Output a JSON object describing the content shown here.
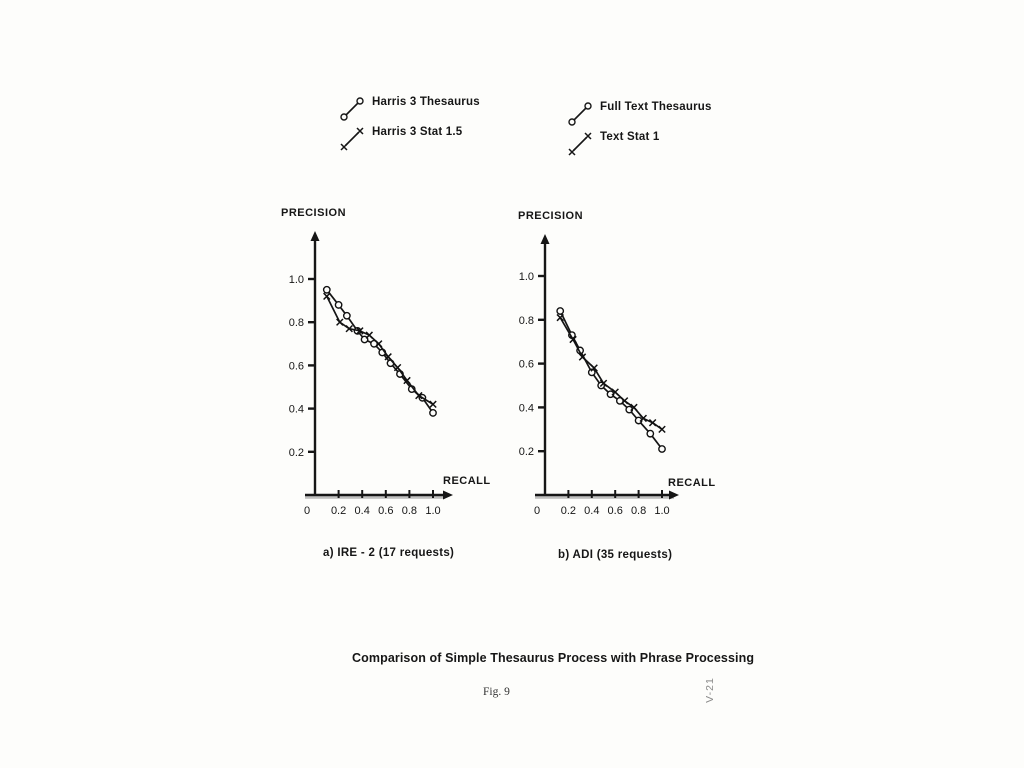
{
  "figure": {
    "title": "Comparison of Simple Thesaurus Process with Phrase Processing",
    "fig_label": "Fig. 9",
    "side_label": "V-21"
  },
  "legends": [
    {
      "name": "ire2-legend",
      "items": [
        {
          "marker": "circle",
          "label": "Harris 3 Thesaurus"
        },
        {
          "marker": "cross",
          "label": "Harris 3 Stat 1.5"
        }
      ]
    },
    {
      "name": "adi-legend",
      "items": [
        {
          "marker": "circle",
          "label": "Full Text Thesaurus"
        },
        {
          "marker": "cross",
          "label": "Text Stat 1"
        }
      ]
    }
  ],
  "chart_data": [
    {
      "type": "line",
      "title": "a)  IRE - 2 (17 requests)",
      "xlabel": "RECALL",
      "ylabel": "PRECISION",
      "xlim": [
        0,
        1.1
      ],
      "ylim": [
        0,
        1.15
      ],
      "x_ticks": [
        "0",
        "0.2",
        "0.4",
        "0.6",
        "0.8",
        "1.0"
      ],
      "x_tick_values": [
        0,
        0.2,
        0.4,
        0.6,
        0.8,
        1.0
      ],
      "y_ticks": [
        "1.0",
        "0.8",
        "0.6",
        "0.4",
        "0.2"
      ],
      "y_tick_values": [
        1.0,
        0.8,
        0.6,
        0.4,
        0.2
      ],
      "grid": false,
      "legend_position": "top-outside",
      "series": [
        {
          "name": "Harris 3 Thesaurus",
          "marker": "circle",
          "points": [
            [
              0.1,
              0.95
            ],
            [
              0.2,
              0.88
            ],
            [
              0.27,
              0.83
            ],
            [
              0.36,
              0.76
            ],
            [
              0.42,
              0.72
            ],
            [
              0.5,
              0.7
            ],
            [
              0.57,
              0.66
            ],
            [
              0.64,
              0.61
            ],
            [
              0.72,
              0.56
            ],
            [
              0.82,
              0.49
            ],
            [
              0.91,
              0.45
            ],
            [
              1.0,
              0.38
            ]
          ]
        },
        {
          "name": "Harris 3 Stat 1.5",
          "marker": "cross",
          "points": [
            [
              0.1,
              0.92
            ],
            [
              0.21,
              0.8
            ],
            [
              0.29,
              0.77
            ],
            [
              0.38,
              0.76
            ],
            [
              0.46,
              0.74
            ],
            [
              0.54,
              0.7
            ],
            [
              0.62,
              0.64
            ],
            [
              0.7,
              0.59
            ],
            [
              0.78,
              0.53
            ],
            [
              0.88,
              0.46
            ],
            [
              1.0,
              0.42
            ]
          ]
        }
      ]
    },
    {
      "type": "line",
      "title": "b)  ADI (35 requests)",
      "xlabel": "RECALL",
      "ylabel": "PRECISION",
      "xlim": [
        0,
        1.1
      ],
      "ylim": [
        0,
        1.15
      ],
      "x_ticks": [
        "0",
        "0.2",
        "0.4",
        "0.6",
        "0.8",
        "1.0"
      ],
      "x_tick_values": [
        0,
        0.2,
        0.4,
        0.6,
        0.8,
        1.0
      ],
      "y_ticks": [
        "1.0",
        "0.8",
        "0.6",
        "0.4",
        "0.2"
      ],
      "y_tick_values": [
        1.0,
        0.8,
        0.6,
        0.4,
        0.2
      ],
      "grid": false,
      "legend_position": "top-outside",
      "series": [
        {
          "name": "Full Text Thesaurus",
          "marker": "circle",
          "points": [
            [
              0.13,
              0.84
            ],
            [
              0.23,
              0.73
            ],
            [
              0.3,
              0.66
            ],
            [
              0.4,
              0.56
            ],
            [
              0.48,
              0.5
            ],
            [
              0.56,
              0.46
            ],
            [
              0.64,
              0.43
            ],
            [
              0.72,
              0.39
            ],
            [
              0.8,
              0.34
            ],
            [
              0.9,
              0.28
            ],
            [
              1.0,
              0.21
            ]
          ]
        },
        {
          "name": "Text Stat 1",
          "marker": "cross",
          "points": [
            [
              0.13,
              0.81
            ],
            [
              0.24,
              0.71
            ],
            [
              0.32,
              0.63
            ],
            [
              0.42,
              0.58
            ],
            [
              0.5,
              0.51
            ],
            [
              0.6,
              0.47
            ],
            [
              0.68,
              0.43
            ],
            [
              0.76,
              0.4
            ],
            [
              0.84,
              0.35
            ],
            [
              0.92,
              0.33
            ],
            [
              1.0,
              0.3
            ]
          ]
        }
      ]
    }
  ]
}
